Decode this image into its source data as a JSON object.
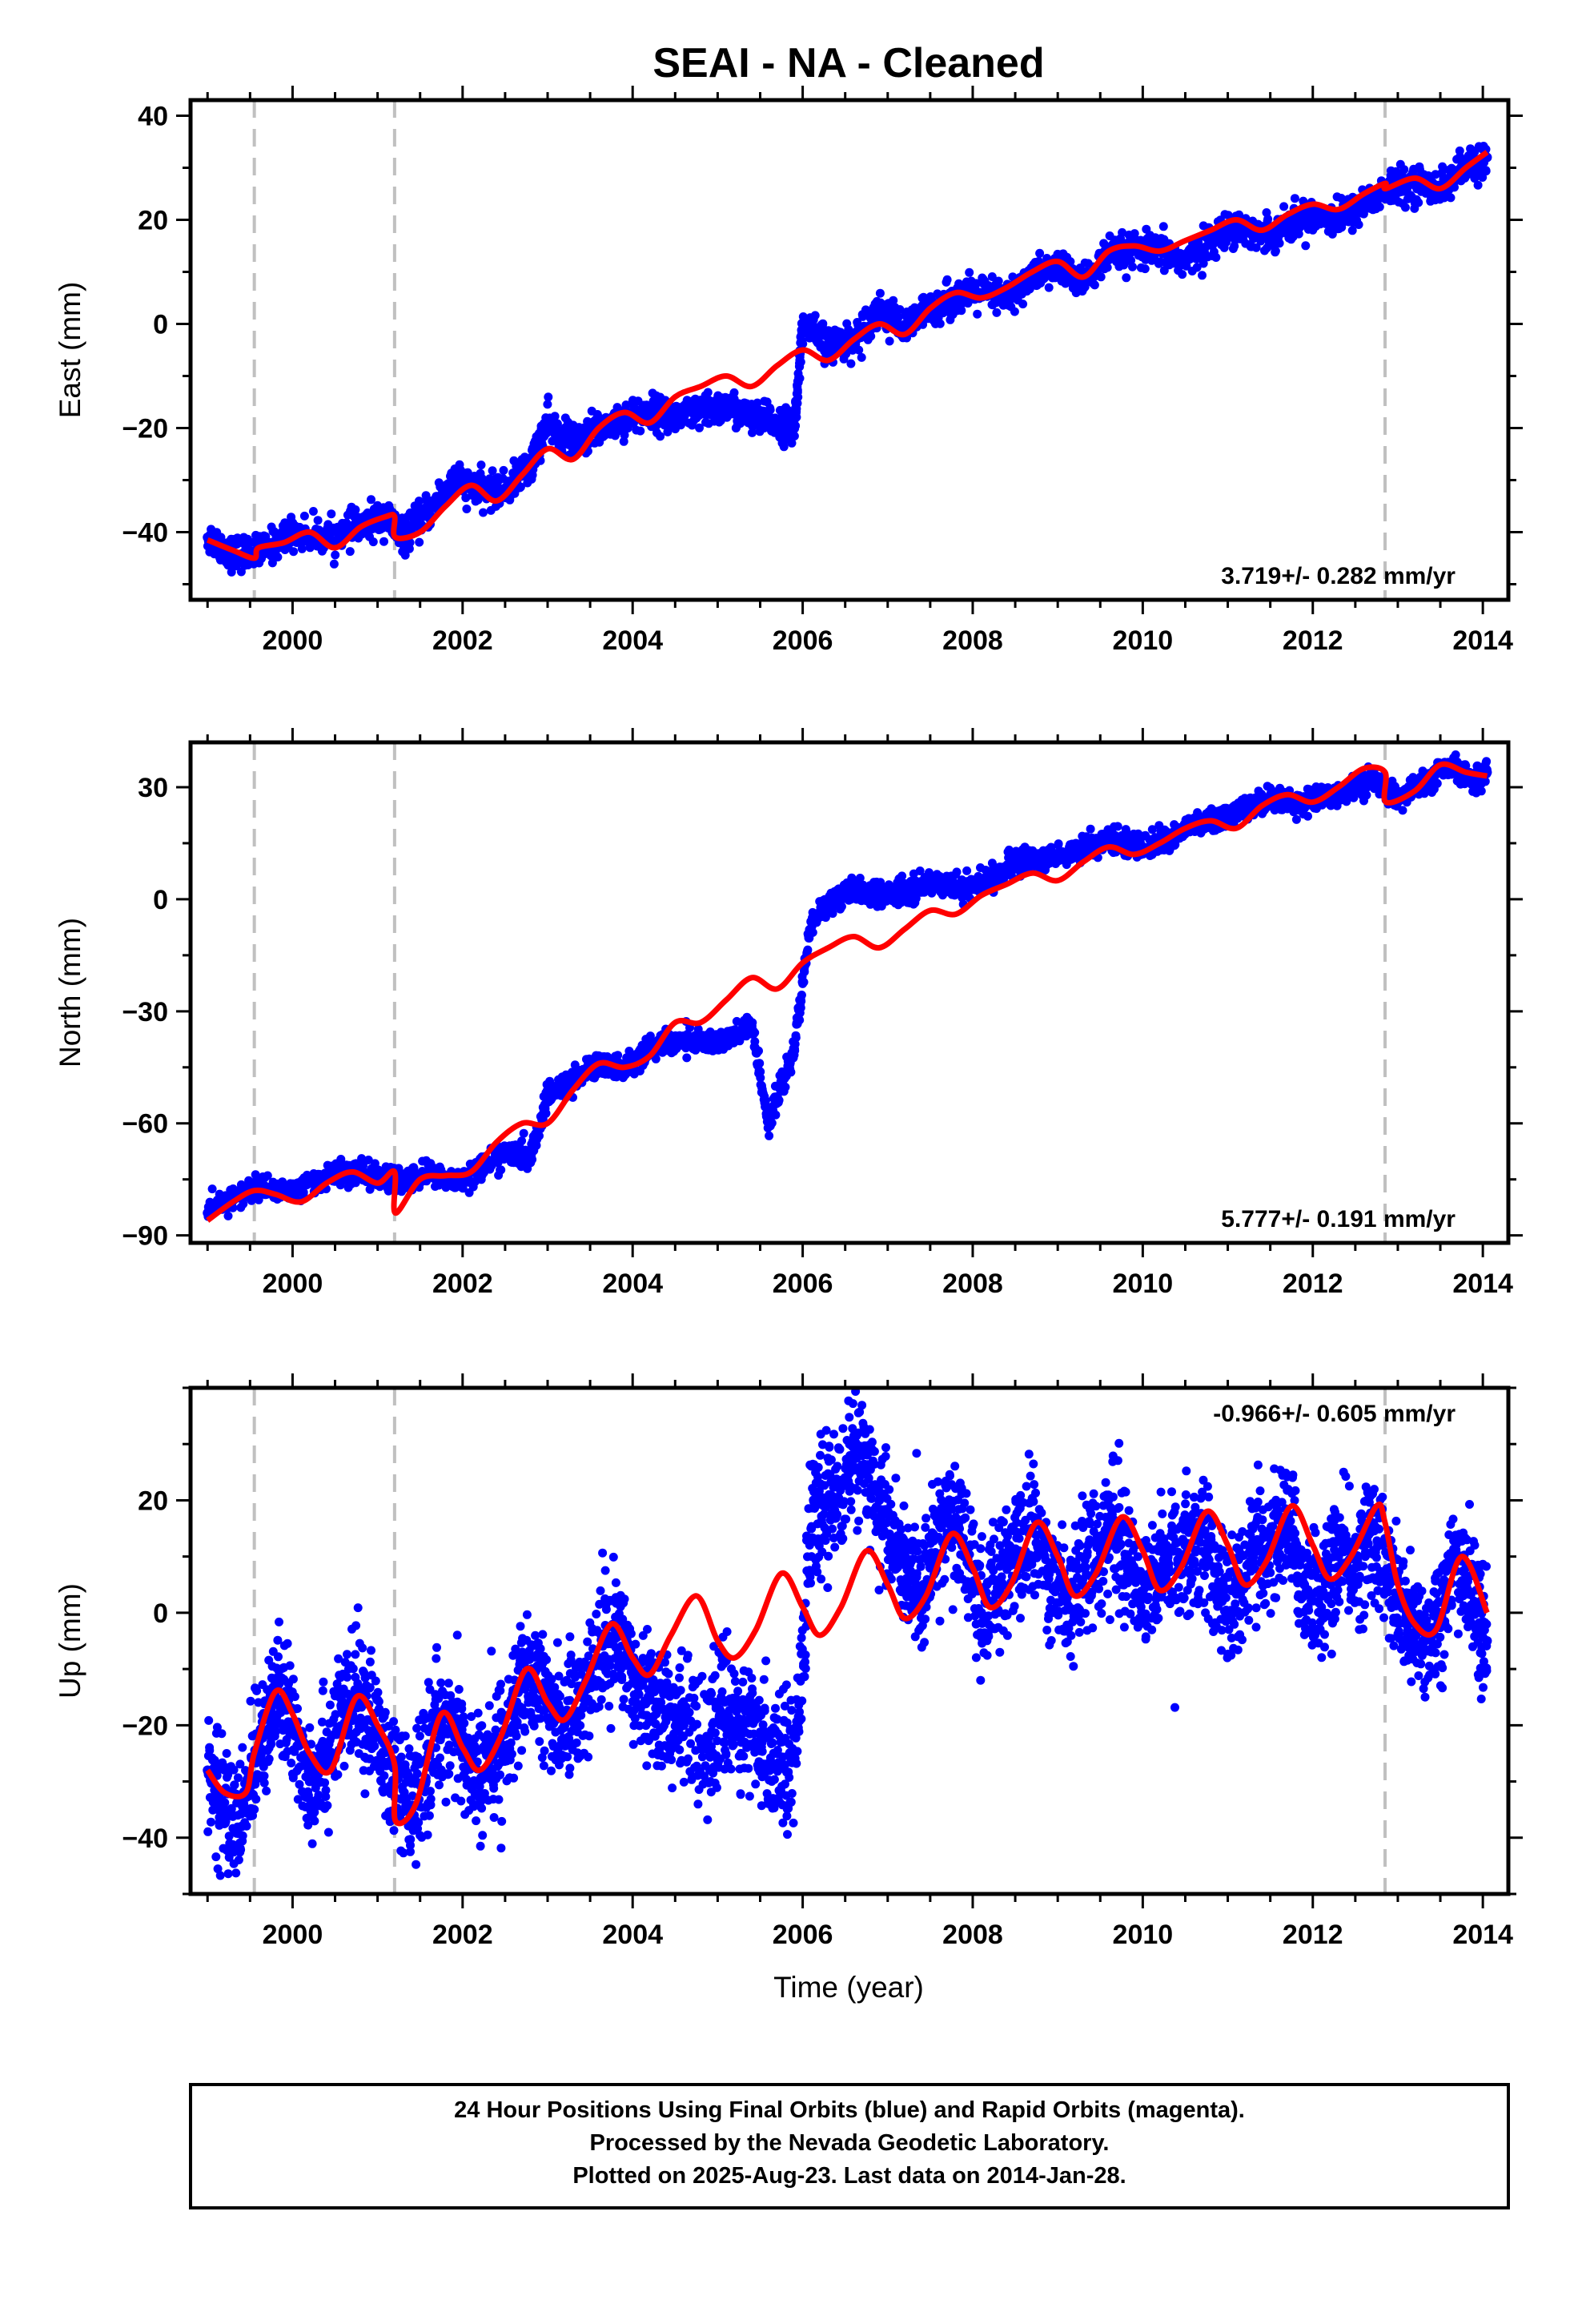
{
  "page": {
    "title": "SEAI  - NA - Cleaned",
    "footer_lines": [
      "24 Hour Positions Using Final Orbits (blue) and Rapid Orbits (magenta).",
      "Processed by the Nevada Geodetic Laboratory.",
      "Plotted on 2025-Aug-23. Last data on 2014-Jan-28."
    ]
  },
  "colors": {
    "data_points": "#0000ff",
    "model_line": "#ff0000",
    "event_lines": "#c0c0c0",
    "axes": "#000000",
    "background": "#ffffff"
  },
  "chart_data": [
    {
      "type": "scatter",
      "panel": "east",
      "ylabel": "East (mm)",
      "xlabel": "",
      "xlim": [
        1998.8,
        2014.3
      ],
      "ylim": [
        -53,
        43
      ],
      "xticks": [
        2000,
        2002,
        2004,
        2006,
        2008,
        2010,
        2012,
        2014
      ],
      "yticks": [
        -40,
        -20,
        0,
        20,
        40
      ],
      "rate_text": "3.719+/- 0.282 mm/yr",
      "rate_position": "bottom-right",
      "event_lines_x": [
        1999.55,
        2001.2,
        2012.85
      ],
      "series": [
        {
          "role": "data",
          "x": [
            1999.0,
            1999.3,
            1999.6,
            2000.0,
            2000.4,
            2000.8,
            2001.1,
            2001.3,
            2001.6,
            2001.9,
            2002.2,
            2002.5,
            2002.8,
            2003.0,
            2003.3,
            2003.6,
            2003.9,
            2004.2,
            2004.5,
            2004.8,
            2005.1,
            2005.4,
            2005.7,
            2005.9,
            2006.0,
            2006.3,
            2006.6,
            2006.9,
            2007.2,
            2007.5,
            2007.8,
            2008.1,
            2008.4,
            2008.7,
            2009.0,
            2009.3,
            2009.6,
            2009.9,
            2010.2,
            2010.5,
            2010.8,
            2011.1,
            2011.4,
            2011.7,
            2012.0,
            2012.3,
            2012.6,
            2012.9,
            2013.2,
            2013.5,
            2013.8,
            2014.05
          ],
          "y": [
            -41,
            -44,
            -44,
            -40,
            -41,
            -39,
            -37,
            -41,
            -36,
            -30,
            -32,
            -32,
            -27,
            -19,
            -23,
            -20,
            -18,
            -17,
            -18,
            -17,
            -16,
            -18,
            -19,
            -20,
            0,
            -4,
            -3,
            3,
            -1,
            3,
            5,
            6,
            5,
            9,
            11,
            8,
            13,
            14,
            14,
            12,
            16,
            19,
            17,
            19,
            21,
            20,
            23,
            26,
            27,
            26,
            30,
            32
          ]
        },
        {
          "role": "model",
          "x": [
            1999.0,
            1999.3,
            1999.55,
            1999.6,
            1999.9,
            2000.2,
            2000.5,
            2000.8,
            2001.1,
            2001.2,
            2001.21,
            2001.5,
            2001.8,
            2002.1,
            2002.4,
            2002.7,
            2003.0,
            2003.3,
            2003.6,
            2003.9,
            2004.2,
            2004.5,
            2004.8,
            2005.1,
            2005.4,
            2005.7,
            2006.0,
            2006.3,
            2006.6,
            2006.9,
            2007.2,
            2007.5,
            2007.8,
            2008.1,
            2008.4,
            2008.7,
            2009.0,
            2009.3,
            2009.6,
            2009.9,
            2010.2,
            2010.5,
            2010.8,
            2011.1,
            2011.4,
            2011.7,
            2012.0,
            2012.3,
            2012.6,
            2012.85,
            2012.86,
            2013.2,
            2013.5,
            2013.8,
            2014.05
          ],
          "y": [
            -41.5,
            -43.5,
            -45,
            -43,
            -42,
            -40,
            -43,
            -39,
            -37,
            -37,
            -41,
            -40,
            -35,
            -31,
            -34,
            -29,
            -24,
            -26,
            -20,
            -17,
            -19,
            -14,
            -12,
            -10,
            -12,
            -8,
            -5,
            -7,
            -3,
            0,
            -2,
            3,
            6,
            5,
            7,
            10,
            12,
            9,
            14,
            15,
            14,
            16,
            18,
            20,
            18,
            21,
            23,
            22,
            25,
            27,
            26,
            28,
            26,
            30,
            33
          ]
        }
      ]
    },
    {
      "type": "scatter",
      "panel": "north",
      "ylabel": "North (mm)",
      "xlabel": "",
      "xlim": [
        1998.8,
        2014.3
      ],
      "ylim": [
        -92,
        42
      ],
      "xticks": [
        2000,
        2002,
        2004,
        2006,
        2008,
        2010,
        2012,
        2014
      ],
      "yticks": [
        -90,
        -60,
        -30,
        0,
        30
      ],
      "rate_text": "5.777+/- 0.191 mm/yr",
      "rate_position": "bottom-right",
      "event_lines_x": [
        1999.55,
        2001.2,
        2012.85
      ],
      "series": [
        {
          "role": "data",
          "x": [
            1999.0,
            1999.3,
            1999.6,
            2000.0,
            2000.4,
            2000.8,
            2001.1,
            2001.3,
            2001.6,
            2001.9,
            2002.2,
            2002.5,
            2002.8,
            2003.0,
            2003.3,
            2003.6,
            2003.9,
            2004.2,
            2004.5,
            2004.8,
            2005.1,
            2005.4,
            2005.6,
            2005.9,
            2006.1,
            2006.4,
            2006.7,
            2007.0,
            2007.3,
            2007.6,
            2007.9,
            2008.2,
            2008.5,
            2008.8,
            2009.1,
            2009.4,
            2009.7,
            2010.0,
            2010.3,
            2010.6,
            2010.9,
            2011.2,
            2011.5,
            2011.8,
            2012.1,
            2012.4,
            2012.7,
            2013.0,
            2013.3,
            2013.6,
            2013.9,
            2014.05
          ],
          "y": [
            -84,
            -80,
            -77,
            -78,
            -74,
            -73,
            -75,
            -76,
            -73,
            -76,
            -72,
            -68,
            -69,
            -53,
            -48,
            -44,
            -45,
            -40,
            -38,
            -38,
            -38,
            -34,
            -60,
            -40,
            -6,
            1,
            2,
            1,
            3,
            5,
            3,
            5,
            10,
            11,
            12,
            15,
            16,
            14,
            16,
            20,
            21,
            24,
            27,
            26,
            27,
            29,
            32,
            27,
            31,
            35,
            32,
            34
          ]
        },
        {
          "role": "model",
          "x": [
            1999.0,
            1999.3,
            1999.55,
            1999.8,
            2000.1,
            2000.4,
            2000.7,
            2001.0,
            2001.2,
            2001.21,
            2001.5,
            2001.8,
            2002.1,
            2002.4,
            2002.7,
            2003.0,
            2003.3,
            2003.6,
            2003.9,
            2004.2,
            2004.5,
            2004.8,
            2005.1,
            2005.4,
            2005.7,
            2006.0,
            2006.3,
            2006.6,
            2006.9,
            2007.2,
            2007.5,
            2007.8,
            2008.1,
            2008.4,
            2008.7,
            2009.0,
            2009.3,
            2009.6,
            2009.9,
            2010.2,
            2010.5,
            2010.8,
            2011.1,
            2011.4,
            2011.7,
            2012.0,
            2012.3,
            2012.6,
            2012.85,
            2012.86,
            2013.2,
            2013.5,
            2013.8,
            2014.05
          ],
          "y": [
            -86,
            -81,
            -78,
            -79,
            -81,
            -76,
            -73,
            -76,
            -73,
            -84,
            -75,
            -74,
            -73,
            -65,
            -60,
            -60,
            -51,
            -44,
            -45,
            -42,
            -33,
            -33,
            -27,
            -21,
            -24,
            -17,
            -13,
            -10,
            -13,
            -8,
            -3,
            -4,
            1,
            4,
            7,
            5,
            10,
            14,
            12,
            15,
            19,
            21,
            19,
            25,
            28,
            26,
            30,
            35,
            34,
            26,
            29,
            36,
            34,
            33
          ]
        }
      ]
    },
    {
      "type": "scatter",
      "panel": "up",
      "ylabel": "Up (mm)",
      "xlabel": "Time (year)",
      "xlim": [
        1998.8,
        2014.3
      ],
      "ylim": [
        -50,
        40
      ],
      "xticks": [
        2000,
        2002,
        2004,
        2006,
        2008,
        2010,
        2012,
        2014
      ],
      "yticks": [
        -40,
        -20,
        0,
        20
      ],
      "rate_text": "-0.966+/- 0.605 mm/yr",
      "rate_position": "top-right",
      "event_lines_x": [
        1999.55,
        2001.2,
        2012.85
      ],
      "series": [
        {
          "role": "data",
          "x": [
            1999.0,
            1999.2,
            1999.4,
            1999.6,
            1999.8,
            2000.0,
            2000.2,
            2000.4,
            2000.6,
            2000.8,
            2001.0,
            2001.2,
            2001.4,
            2001.6,
            2001.8,
            2002.0,
            2002.2,
            2002.4,
            2002.6,
            2002.8,
            2003.0,
            2003.2,
            2003.4,
            2003.6,
            2003.8,
            2004.0,
            2004.2,
            2004.4,
            2004.6,
            2004.9,
            2005.1,
            2005.3,
            2005.5,
            2005.7,
            2005.9,
            2006.1,
            2006.3,
            2006.5,
            2006.7,
            2006.9,
            2007.1,
            2007.3,
            2007.5,
            2007.7,
            2007.9,
            2008.1,
            2008.3,
            2008.5,
            2008.7,
            2008.9,
            2009.1,
            2009.3,
            2009.5,
            2009.7,
            2009.9,
            2010.1,
            2010.3,
            2010.5,
            2010.7,
            2010.9,
            2011.1,
            2011.3,
            2011.5,
            2011.7,
            2011.9,
            2012.1,
            2012.3,
            2012.5,
            2012.7,
            2012.9,
            2013.1,
            2013.3,
            2013.5,
            2013.7,
            2013.9,
            2014.05
          ],
          "y": [
            -28,
            -35,
            -38,
            -22,
            -15,
            -20,
            -30,
            -25,
            -18,
            -15,
            -22,
            -30,
            -35,
            -25,
            -18,
            -24,
            -30,
            -25,
            -18,
            -12,
            -16,
            -20,
            -15,
            -8,
            -3,
            -10,
            -15,
            -18,
            -20,
            -22,
            -18,
            -20,
            -24,
            -25,
            -26,
            15,
            20,
            24,
            28,
            20,
            10,
            4,
            8,
            18,
            12,
            0,
            5,
            10,
            15,
            8,
            2,
            8,
            12,
            15,
            6,
            5,
            8,
            12,
            14,
            3,
            4,
            10,
            12,
            16,
            5,
            3,
            10,
            8,
            15,
            5,
            -2,
            -5,
            0,
            10,
            2,
            -5
          ]
        },
        {
          "role": "model",
          "x": [
            1999.0,
            1999.2,
            1999.45,
            1999.55,
            1999.8,
            2000.0,
            2000.2,
            2000.45,
            2000.75,
            2001.0,
            2001.2,
            2001.21,
            2001.45,
            2001.75,
            2002.0,
            2002.2,
            2002.45,
            2002.75,
            2003.0,
            2003.2,
            2003.45,
            2003.75,
            2004.0,
            2004.2,
            2004.45,
            2004.75,
            2005.0,
            2005.2,
            2005.45,
            2005.75,
            2006.0,
            2006.2,
            2006.45,
            2006.75,
            2007.0,
            2007.2,
            2007.45,
            2007.75,
            2008.0,
            2008.2,
            2008.45,
            2008.75,
            2009.0,
            2009.2,
            2009.45,
            2009.75,
            2010.0,
            2010.2,
            2010.45,
            2010.75,
            2011.0,
            2011.2,
            2011.45,
            2011.75,
            2012.0,
            2012.2,
            2012.45,
            2012.75,
            2012.85,
            2013.0,
            2013.2,
            2013.45,
            2013.75,
            2014.05
          ],
          "y": [
            -28,
            -32,
            -32,
            -25,
            -14,
            -18,
            -25,
            -28,
            -15,
            -20,
            -27,
            -37,
            -34,
            -18,
            -24,
            -28,
            -22,
            -10,
            -16,
            -19,
            -12,
            -2,
            -8,
            -11,
            -4,
            3,
            -5,
            -8,
            -3,
            7,
            1,
            -4,
            1,
            11,
            5,
            -1,
            3,
            14,
            8,
            1,
            5,
            16,
            10,
            3,
            7,
            17,
            11,
            4,
            8,
            18,
            12,
            5,
            9,
            19,
            12,
            6,
            10,
            19,
            16,
            5,
            -2,
            -3,
            10,
            0
          ]
        }
      ]
    }
  ]
}
